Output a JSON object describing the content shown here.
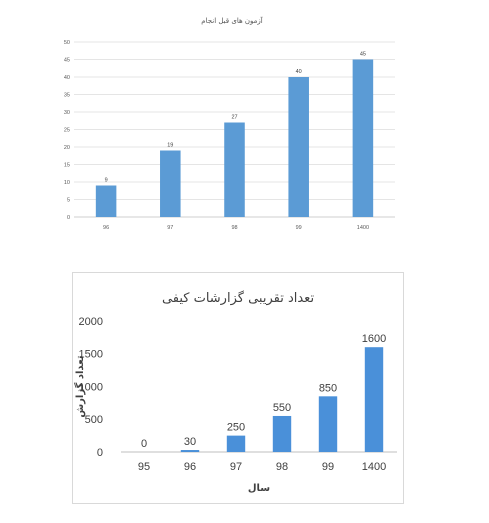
{
  "chart_data": [
    {
      "type": "bar",
      "title": "آزمون های قبل انجام",
      "categories": [
        "96",
        "97",
        "98",
        "99",
        "1400"
      ],
      "values": [
        9,
        19,
        27,
        40,
        45
      ],
      "ylim": [
        0,
        50
      ],
      "yticks": [
        "0",
        "5",
        "10",
        "15",
        "20",
        "25",
        "30",
        "35",
        "40",
        "45",
        "50"
      ],
      "grid": true,
      "bar_color": "#5b9bd5"
    },
    {
      "type": "bar",
      "title": "تعداد تقریبی گزارشات کیفی",
      "xlabel": "سال",
      "ylabel": "تعداد گزارش",
      "categories": [
        "95",
        "96",
        "97",
        "98",
        "99",
        "1400"
      ],
      "values": [
        0,
        30,
        250,
        550,
        850,
        1600
      ],
      "ylim": [
        0,
        2000
      ],
      "yticks": [
        "0",
        "500",
        "1000",
        "1500",
        "2000"
      ],
      "grid": false,
      "bar_color": "#4a90d9"
    }
  ]
}
